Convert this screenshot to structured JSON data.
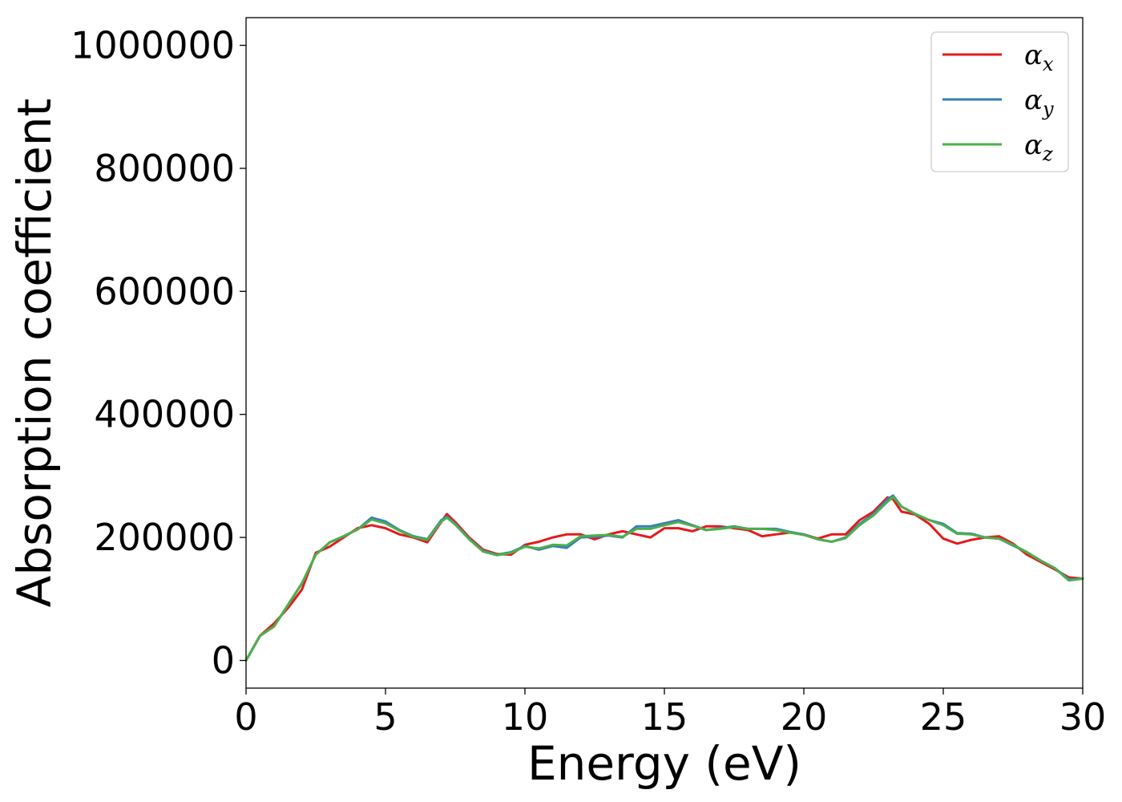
{
  "chart_data": {
    "type": "line",
    "xlabel": "Energy (eV)",
    "ylabel": "Absorption coefficient",
    "xlim": [
      0,
      30
    ],
    "ylim": [
      -45000,
      1045000
    ],
    "xticks": [
      0,
      5,
      10,
      15,
      20,
      25,
      30
    ],
    "yticks": [
      0,
      200000,
      400000,
      600000,
      800000,
      1000000
    ],
    "grid": false,
    "legend": "top-right",
    "series": [
      {
        "name": "α_x",
        "color": "#e41a1c",
        "x": [
          0,
          0.5,
          1,
          1.5,
          2,
          2.5,
          3,
          3.5,
          4,
          4.5,
          5,
          5.5,
          6,
          6.5,
          7,
          7.2,
          7.5,
          8,
          8.5,
          9,
          9.5,
          10,
          10.5,
          11,
          11.5,
          12,
          12.5,
          13,
          13.5,
          14,
          14.5,
          15,
          15.5,
          16,
          16.5,
          17,
          17.5,
          18,
          18.5,
          19,
          19.5,
          20,
          20.5,
          21,
          21.5,
          22,
          22.5,
          23,
          23.2,
          23.5,
          24,
          24.5,
          25,
          25.5,
          26,
          26.5,
          27,
          27.5,
          28,
          28.5,
          29,
          29.5,
          30
        ],
        "y": [
          0,
          40000,
          60000,
          85000,
          115000,
          175000,
          185000,
          200000,
          215000,
          220000,
          215000,
          205000,
          200000,
          192000,
          225000,
          238000,
          225000,
          200000,
          180000,
          173000,
          172000,
          188000,
          193000,
          200000,
          205000,
          205000,
          197000,
          205000,
          210000,
          205000,
          200000,
          215000,
          215000,
          210000,
          218000,
          218000,
          215000,
          212000,
          202000,
          205000,
          208000,
          205000,
          198000,
          205000,
          205000,
          228000,
          242000,
          265000,
          262000,
          242000,
          237000,
          222000,
          198000,
          190000,
          196000,
          200000,
          202000,
          190000,
          172000,
          160000,
          148000,
          135000,
          133000
        ]
      },
      {
        "name": "α_y",
        "color": "#377eb8",
        "x": [
          0,
          0.5,
          1,
          1.5,
          2,
          2.5,
          3,
          3.5,
          4,
          4.5,
          5,
          5.5,
          6,
          6.5,
          7,
          7.2,
          7.5,
          8,
          8.5,
          9,
          9.5,
          10,
          10.5,
          11,
          11.5,
          12,
          12.5,
          13,
          13.5,
          14,
          14.5,
          15,
          15.5,
          16,
          16.5,
          17,
          17.5,
          18,
          18.5,
          19,
          19.5,
          20,
          20.5,
          21,
          21.5,
          22,
          22.5,
          23,
          23.2,
          23.5,
          24,
          24.5,
          25,
          25.5,
          26,
          26.5,
          27,
          27.5,
          28,
          28.5,
          29,
          29.5,
          30
        ],
        "y": [
          0,
          40000,
          55000,
          90000,
          125000,
          172000,
          192000,
          202000,
          213000,
          232000,
          226000,
          212000,
          202000,
          197000,
          228000,
          234000,
          222000,
          198000,
          178000,
          172000,
          176000,
          186000,
          180000,
          186000,
          183000,
          200000,
          201000,
          203000,
          200000,
          218000,
          218000,
          223000,
          228000,
          220000,
          212000,
          215000,
          218000,
          214000,
          214000,
          214000,
          209000,
          205000,
          197000,
          193000,
          200000,
          222000,
          238000,
          262000,
          268000,
          250000,
          238000,
          228000,
          222000,
          207000,
          206000,
          200000,
          198000,
          187000,
          176000,
          162000,
          150000,
          132000,
          133000
        ]
      },
      {
        "name": "α_z",
        "color": "#4daf4a",
        "x": [
          0,
          0.5,
          1,
          1.5,
          2,
          2.5,
          3,
          3.5,
          4,
          4.5,
          5,
          5.5,
          6,
          6.5,
          7,
          7.2,
          7.5,
          8,
          8.5,
          9,
          9.5,
          10,
          10.5,
          11,
          11.5,
          12,
          12.5,
          13,
          13.5,
          14,
          14.5,
          15,
          15.5,
          16,
          16.5,
          17,
          17.5,
          18,
          18.5,
          19,
          19.5,
          20,
          20.5,
          21,
          21.5,
          22,
          22.5,
          23,
          23.2,
          23.5,
          24,
          24.5,
          25,
          25.5,
          26,
          26.5,
          27,
          27.5,
          28,
          28.5,
          29,
          29.5,
          30
        ],
        "y": [
          0,
          40000,
          55000,
          90000,
          125000,
          172000,
          192000,
          202000,
          213000,
          229000,
          223000,
          211000,
          201000,
          196000,
          226000,
          232000,
          221000,
          197000,
          177000,
          171000,
          175000,
          185000,
          182000,
          188000,
          187000,
          202000,
          203000,
          204000,
          201000,
          214000,
          214000,
          220000,
          225000,
          219000,
          212000,
          214000,
          217000,
          214000,
          214000,
          212000,
          208000,
          204000,
          197000,
          193000,
          199000,
          220000,
          236000,
          258000,
          266000,
          250000,
          238000,
          228000,
          220000,
          206000,
          205000,
          200000,
          198000,
          188000,
          176000,
          162000,
          150000,
          130000,
          133000
        ]
      }
    ]
  }
}
